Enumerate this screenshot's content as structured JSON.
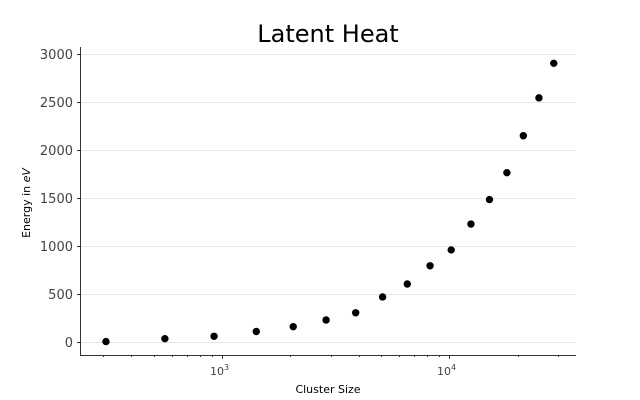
{
  "chart_data": {
    "type": "scatter",
    "title": "Latent Heat",
    "xlabel": "Cluster Size",
    "ylabel": "Energy in ",
    "ylabel_unit": "eV",
    "x_scale": "log",
    "xlim": [
      240,
      36000
    ],
    "ylim": [
      -140,
      3070
    ],
    "grid": "horizontal",
    "y_ticks": [
      0,
      500,
      1000,
      1500,
      2000,
      2500,
      3000
    ],
    "y_tick_labels": [
      "0",
      "500",
      "1000",
      "1500",
      "2000",
      "2500",
      "3000"
    ],
    "x_ticks": [
      1000,
      10000
    ],
    "x_tick_labels": [
      {
        "base": "10",
        "exp": "3"
      },
      {
        "base": "10",
        "exp": "4"
      }
    ],
    "series": [
      {
        "color": "#000000",
        "x": [
          309,
          561,
          923,
          1415,
          2057,
          2869,
          3871,
          5083,
          6525,
          8217,
          10179,
          12431,
          14993,
          17885,
          21127,
          24739,
          28741
        ],
        "y": [
          0,
          30,
          55,
          105,
          155,
          225,
          300,
          465,
          600,
          790,
          955,
          1225,
          1480,
          1760,
          2145,
          2540,
          2900
        ]
      }
    ]
  }
}
